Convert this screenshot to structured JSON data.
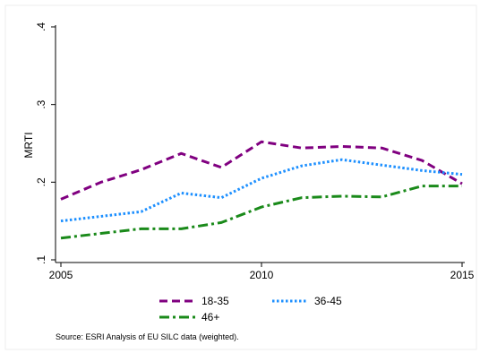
{
  "chart_data": {
    "type": "line",
    "ylabel": "MRTI",
    "xlabel": "",
    "x": [
      2005,
      2006,
      2007,
      2008,
      2009,
      2010,
      2011,
      2012,
      2013,
      2014,
      2015
    ],
    "xticks": [
      "2005",
      "2010",
      "2015"
    ],
    "yticks": [
      ".1",
      ".2",
      ".3",
      ".4"
    ],
    "ylim": [
      0.1,
      0.4
    ],
    "xlim": [
      2005,
      2015
    ],
    "grid": false,
    "legend_position": "bottom",
    "series": [
      {
        "name": "18-35",
        "color": "#800080",
        "dash": "dashed",
        "values": [
          0.178,
          0.2,
          0.216,
          0.237,
          0.219,
          0.252,
          0.244,
          0.246,
          0.244,
          0.228,
          0.198
        ]
      },
      {
        "name": "36-45",
        "color": "#1e90ff",
        "dash": "dotted",
        "values": [
          0.15,
          0.156,
          0.162,
          0.186,
          0.18,
          0.205,
          0.221,
          0.229,
          0.222,
          0.215,
          0.21
        ]
      },
      {
        "name": "46+",
        "color": "#1a8a1a",
        "dash": "dashdot",
        "values": [
          0.128,
          0.134,
          0.14,
          0.14,
          0.148,
          0.168,
          0.18,
          0.182,
          0.181,
          0.195,
          0.195
        ]
      }
    ],
    "note": "Source:  ESRI Analysis of EU SILC data (weighted)."
  }
}
